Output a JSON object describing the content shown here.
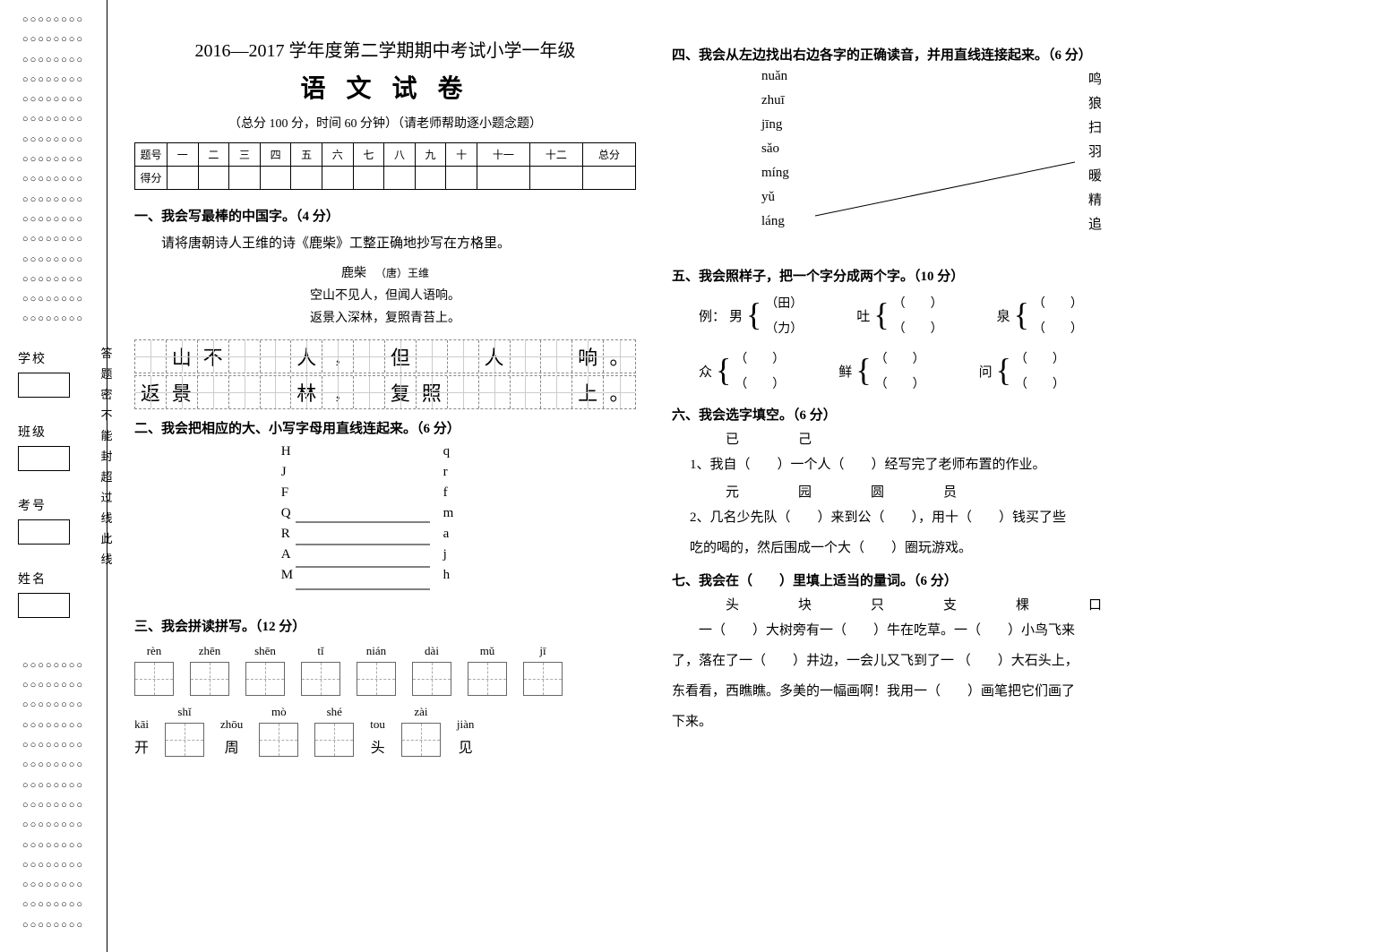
{
  "header": {
    "line1": "2016—2017 学年度第二学期期中考试小学一年级",
    "main": "语 文 试 卷",
    "sub": "（总分 100 分，时间 60 分钟）（请老师帮助逐小题念题）"
  },
  "score_table": {
    "row1": [
      "题号",
      "一",
      "二",
      "三",
      "四",
      "五",
      "六",
      "七",
      "八",
      "九",
      "十",
      "十一",
      "十二",
      "总分"
    ],
    "row2_label": "得分"
  },
  "margin": {
    "bubble_pattern": "○○○○○○○○",
    "labels": [
      "学校",
      "班级",
      "考号",
      "姓名"
    ],
    "seal": [
      "答",
      "题",
      "密",
      "不",
      "能",
      "封",
      "超",
      "过",
      "线",
      "此",
      "线"
    ]
  },
  "q1": {
    "head": "一、我会写最棒的中国字。（4 分）",
    "instr": "请将唐朝诗人王维的诗《鹿柴》工整正确地抄写在方格里。",
    "poem_title": "鹿柴",
    "poem_author": "（唐）王维",
    "poem_l1": "空山不见人，但闻人语响。",
    "poem_l2": "返景入深林，复照青苔上。",
    "grid_row1": [
      "",
      "山",
      "不",
      "",
      "",
      "人",
      ",",
      "",
      "但",
      "",
      "",
      "人",
      "",
      "",
      "响",
      "。"
    ],
    "grid_row2": [
      "返",
      "景",
      "",
      "",
      "",
      "林",
      ",",
      "",
      "复",
      "照",
      "",
      "",
      "",
      "",
      "上",
      "。"
    ]
  },
  "q2": {
    "head": "二、我会把相应的大、小写字母用直线连起来。（6 分）",
    "left": [
      "H",
      "J",
      "F",
      "Q",
      "R",
      "A",
      "M"
    ],
    "right": [
      "q",
      "r",
      "f",
      "m",
      "a",
      "j",
      "h"
    ],
    "lines": [
      [
        3,
        3
      ],
      [
        4,
        4
      ],
      [
        5,
        5
      ],
      [
        6,
        6
      ]
    ]
  },
  "q3": {
    "head": "三、我会拼读拼写。（12 分）",
    "row1": [
      {
        "py": "rèn",
        "ch": ""
      },
      {
        "py": "zhēn",
        "ch": ""
      },
      {
        "py": "shēn",
        "ch": ""
      },
      {
        "py": "tǐ",
        "ch": ""
      },
      {
        "py": "nián",
        "ch": ""
      },
      {
        "py": "dài",
        "ch": ""
      },
      {
        "py": "mǔ",
        "ch": ""
      },
      {
        "py": "jī",
        "ch": ""
      }
    ],
    "row2": [
      {
        "py": "kāi",
        "ch": "开"
      },
      {
        "py": "shǐ",
        "ch": ""
      },
      {
        "py": "zhōu",
        "ch": "周"
      },
      {
        "py": "mò",
        "ch": ""
      },
      {
        "py": "shé",
        "ch": ""
      },
      {
        "py": "tou",
        "ch": "头"
      },
      {
        "py": "zài",
        "ch": ""
      },
      {
        "py": "jiàn",
        "ch": "见"
      }
    ]
  },
  "q4": {
    "head": "四、我会从左边找出右边各字的正确读音，并用直线连接起来。（6 分）",
    "left": [
      "nuǎn",
      "zhuī",
      "jīng",
      "sǎo",
      "míng",
      "yǔ",
      "láng"
    ],
    "right": [
      "鸣",
      "狼",
      "扫",
      "羽",
      "暖",
      "精",
      "追"
    ],
    "lines": [
      [
        5,
        3
      ]
    ]
  },
  "q5": {
    "head": "五、我会照样子，把一个字分成两个字。（10 分）",
    "example_char": "男",
    "example_parts": [
      "（田）",
      "（力）"
    ],
    "items1": [
      {
        "ch": "吐",
        "parts": [
          "（　　）",
          "（　　）"
        ]
      },
      {
        "ch": "泉",
        "parts": [
          "（　　）",
          "（　　）"
        ]
      }
    ],
    "items2": [
      {
        "ch": "众",
        "parts": [
          "（　　）",
          "（　　）"
        ]
      },
      {
        "ch": "鲜",
        "parts": [
          "（　　）",
          "（　　）"
        ]
      },
      {
        "ch": "问",
        "parts": [
          "（　　）",
          "（　　）"
        ]
      }
    ]
  },
  "q6": {
    "head": "六、我会选字填空。（6 分）",
    "set1": "已　　己",
    "line1": "1、我自（　　）一个人（　　）经写完了老师布置的作业。",
    "set2": "元　　园　　圆　　员",
    "line2a": "2、几名少先队（　　）来到公（　　），用十（　　）钱买了些",
    "line2b": "吃的喝的，然后围成一个大（　　）圈玩游戏。"
  },
  "q7": {
    "head": "七、我会在（　　）里填上适当的量词。（6 分）",
    "choices": "头　　块　　只　　支　　棵　　口",
    "p1": "　　一（　　）大树旁有一（　　）牛在吃草。一（　　）小鸟飞来",
    "p2": "了，落在了一（　　）井边，一会儿又飞到了一 （　　）大石头上，",
    "p3": "东看看，西瞧瞧。多美的一幅画啊！我用一（　　）画笔把它们画了",
    "p4": "下来。"
  }
}
